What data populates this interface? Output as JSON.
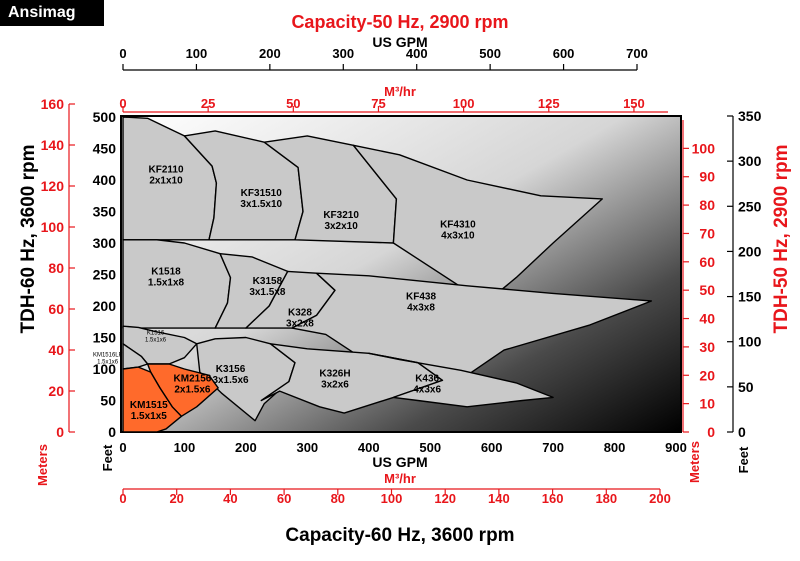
{
  "brand": "Ansimag",
  "colors": {
    "red": "#e8161b",
    "orange": "#ff6a2b",
    "gray_fill": "#c9c9c9",
    "outline": "#000000"
  },
  "chart_data": {
    "type": "area",
    "title_top": "Capacity-50 Hz, 2900 rpm",
    "title_bottom": "Capacity-60 Hz, 3600 rpm",
    "ylabel_left": "TDH-60 Hz, 3600 rpm",
    "ylabel_right": "TDH-50 Hz, 2900 rpm",
    "axes": {
      "top_gpm": {
        "label": "US GPM",
        "ticks": [
          0,
          100,
          200,
          300,
          400,
          500,
          600,
          700
        ],
        "range": [
          0,
          700
        ]
      },
      "top_m3hr": {
        "label": "M³/hr",
        "ticks": [
          0,
          25,
          50,
          75,
          100,
          125,
          150
        ],
        "range": [
          0,
          160
        ]
      },
      "bottom_gpm": {
        "label": "US GPM",
        "ticks": [
          0,
          100,
          200,
          300,
          400,
          500,
          600,
          700,
          800,
          900
        ],
        "range": [
          0,
          900
        ]
      },
      "bottom_m3hr": {
        "label": "M³/hr",
        "ticks": [
          0,
          20,
          40,
          60,
          80,
          100,
          120,
          140,
          160,
          180,
          200
        ],
        "range": [
          0,
          200
        ]
      },
      "left_meters": {
        "label": "Meters",
        "ticks": [
          0,
          20,
          40,
          60,
          80,
          100,
          120,
          140,
          160
        ],
        "range": [
          0,
          160
        ]
      },
      "left_feet": {
        "label": "Feet",
        "ticks": [
          0,
          50,
          100,
          150,
          200,
          250,
          300,
          350,
          400,
          450,
          500
        ],
        "range": [
          0,
          500
        ]
      },
      "right_meters": {
        "label": "Meters",
        "ticks": [
          0,
          10,
          20,
          30,
          40,
          50,
          60,
          70,
          80,
          90,
          100
        ],
        "range": [
          0,
          110
        ]
      },
      "right_feet": {
        "label": "Feet",
        "ticks": [
          0,
          50,
          100,
          150,
          200,
          250,
          300,
          350
        ],
        "range": [
          0,
          350
        ]
      }
    },
    "regions": [
      {
        "name": "KF2110",
        "size": "2x1x10",
        "highlight": false,
        "label_at": [
          70,
          412
        ],
        "outline": [
          [
            0,
            305
          ],
          [
            0,
            500
          ],
          [
            40,
            498
          ],
          [
            100,
            470
          ],
          [
            145,
            422
          ],
          [
            152,
            395
          ],
          [
            148,
            340
          ],
          [
            140,
            305
          ]
        ]
      },
      {
        "name": "KF31510",
        "size": "3x1.5x10",
        "highlight": false,
        "label_at": [
          225,
          375
        ],
        "outline": [
          [
            140,
            305
          ],
          [
            148,
            340
          ],
          [
            152,
            395
          ],
          [
            145,
            422
          ],
          [
            100,
            470
          ],
          [
            150,
            478
          ],
          [
            230,
            460
          ],
          [
            285,
            420
          ],
          [
            293,
            350
          ],
          [
            280,
            305
          ]
        ]
      },
      {
        "name": "KF3210",
        "size": "3x2x10",
        "highlight": false,
        "label_at": [
          355,
          340
        ],
        "outline": [
          [
            280,
            305
          ],
          [
            293,
            350
          ],
          [
            285,
            420
          ],
          [
            230,
            460
          ],
          [
            300,
            470
          ],
          [
            375,
            455
          ],
          [
            445,
            370
          ],
          [
            440,
            300
          ]
        ]
      },
      {
        "name": "KF4310",
        "size": "4x3x10",
        "highlight": false,
        "label_at": [
          545,
          325
        ],
        "outline": [
          [
            440,
            300
          ],
          [
            445,
            370
          ],
          [
            375,
            455
          ],
          [
            450,
            440
          ],
          [
            560,
            400
          ],
          [
            680,
            375
          ],
          [
            780,
            370
          ],
          [
            700,
            300
          ],
          [
            640,
            245
          ],
          [
            590,
            205
          ]
        ]
      },
      {
        "name": "K1518",
        "size": "1.5x1x8",
        "highlight": false,
        "label_at": [
          70,
          250
        ],
        "outline": [
          [
            0,
            165
          ],
          [
            0,
            305
          ],
          [
            55,
            305
          ],
          [
            100,
            300
          ],
          [
            158,
            283
          ],
          [
            175,
            245
          ],
          [
            170,
            205
          ],
          [
            150,
            165
          ]
        ]
      },
      {
        "name": "K3158",
        "size": "3x1.5x8",
        "highlight": false,
        "label_at": [
          235,
          235
        ],
        "outline": [
          [
            150,
            165
          ],
          [
            170,
            205
          ],
          [
            175,
            245
          ],
          [
            158,
            283
          ],
          [
            210,
            278
          ],
          [
            268,
            255
          ],
          [
            238,
            200
          ],
          [
            200,
            165
          ]
        ]
      },
      {
        "name": "K328",
        "size": "3x2x8",
        "highlight": false,
        "label_at": [
          288,
          185
        ],
        "outline": [
          [
            200,
            165
          ],
          [
            238,
            200
          ],
          [
            268,
            255
          ],
          [
            315,
            252
          ],
          [
            345,
            225
          ],
          [
            315,
            185
          ],
          [
            275,
            165
          ]
        ]
      },
      {
        "name": "KF438",
        "size": "4x3x8",
        "highlight": false,
        "label_at": [
          485,
          210
        ],
        "outline": [
          [
            275,
            165
          ],
          [
            315,
            185
          ],
          [
            345,
            225
          ],
          [
            315,
            252
          ],
          [
            400,
            248
          ],
          [
            560,
            232
          ],
          [
            700,
            220
          ],
          [
            860,
            208
          ],
          [
            760,
            170
          ],
          [
            620,
            130
          ],
          [
            560,
            90
          ],
          [
            480,
            85
          ],
          [
            400,
            110
          ],
          [
            330,
            155
          ]
        ]
      },
      {
        "name": "K1516",
        "size": "1.5x1x6",
        "highlight": false,
        "label_at": [
          53,
          155
        ],
        "outline": [
          [
            0,
            140
          ],
          [
            0,
            168
          ],
          [
            25,
            166
          ],
          [
            50,
            160
          ],
          [
            100,
            150
          ],
          [
            120,
            140
          ],
          [
            100,
            118
          ],
          [
            75,
            108
          ],
          [
            40,
            108
          ],
          [
            30,
            120
          ]
        ]
      },
      {
        "name": "KM1516LF",
        "size": "1.5x1x6",
        "highlight": false,
        "label_at": [
          -25,
          120
        ],
        "outline": [
          [
            0,
            100
          ],
          [
            0,
            140
          ],
          [
            30,
            120
          ],
          [
            40,
            108
          ],
          [
            25,
            103
          ]
        ]
      },
      {
        "name": "K3156",
        "size": "3x1.5x6",
        "highlight": false,
        "label_at": [
          175,
          95
        ],
        "outline": [
          [
            120,
            140
          ],
          [
            150,
            148
          ],
          [
            200,
            150
          ],
          [
            240,
            140
          ],
          [
            280,
            110
          ],
          [
            270,
            80
          ],
          [
            230,
            45
          ],
          [
            215,
            18
          ],
          [
            160,
            62
          ],
          [
            125,
            95
          ]
        ]
      },
      {
        "name": "K326H",
        "size": "3x2x6",
        "highlight": false,
        "label_at": [
          345,
          88
        ],
        "outline": [
          [
            240,
            140
          ],
          [
            300,
            132
          ],
          [
            400,
            125
          ],
          [
            480,
            110
          ],
          [
            520,
            82
          ],
          [
            440,
            55
          ],
          [
            360,
            30
          ],
          [
            320,
            40
          ],
          [
            255,
            65
          ],
          [
            225,
            50
          ],
          [
            270,
            80
          ],
          [
            280,
            110
          ]
        ]
      },
      {
        "name": "K436",
        "size": "4x3x6",
        "highlight": false,
        "label_at": [
          495,
          80
        ],
        "outline": [
          [
            400,
            125
          ],
          [
            450,
            115
          ],
          [
            550,
            98
          ],
          [
            640,
            78
          ],
          [
            700,
            55
          ],
          [
            650,
            50
          ],
          [
            560,
            40
          ],
          [
            480,
            50
          ],
          [
            440,
            55
          ],
          [
            520,
            82
          ],
          [
            480,
            110
          ]
        ]
      },
      {
        "name": "KM2156",
        "size": "2x1.5x6",
        "highlight": true,
        "label_at": [
          113,
          80
        ],
        "outline": [
          [
            40,
            108
          ],
          [
            75,
            108
          ],
          [
            100,
            100
          ],
          [
            140,
            90
          ],
          [
            155,
            70
          ],
          [
            120,
            40
          ],
          [
            95,
            25
          ],
          [
            80,
            40
          ],
          [
            60,
            70
          ],
          [
            45,
            95
          ]
        ]
      },
      {
        "name": "KM1515",
        "size": "1.5x1x5",
        "highlight": true,
        "label_at": [
          42,
          38
        ],
        "outline": [
          [
            0,
            0
          ],
          [
            0,
            100
          ],
          [
            25,
            103
          ],
          [
            45,
            95
          ],
          [
            60,
            70
          ],
          [
            80,
            40
          ],
          [
            95,
            25
          ],
          [
            70,
            5
          ],
          [
            55,
            0
          ]
        ]
      }
    ]
  }
}
